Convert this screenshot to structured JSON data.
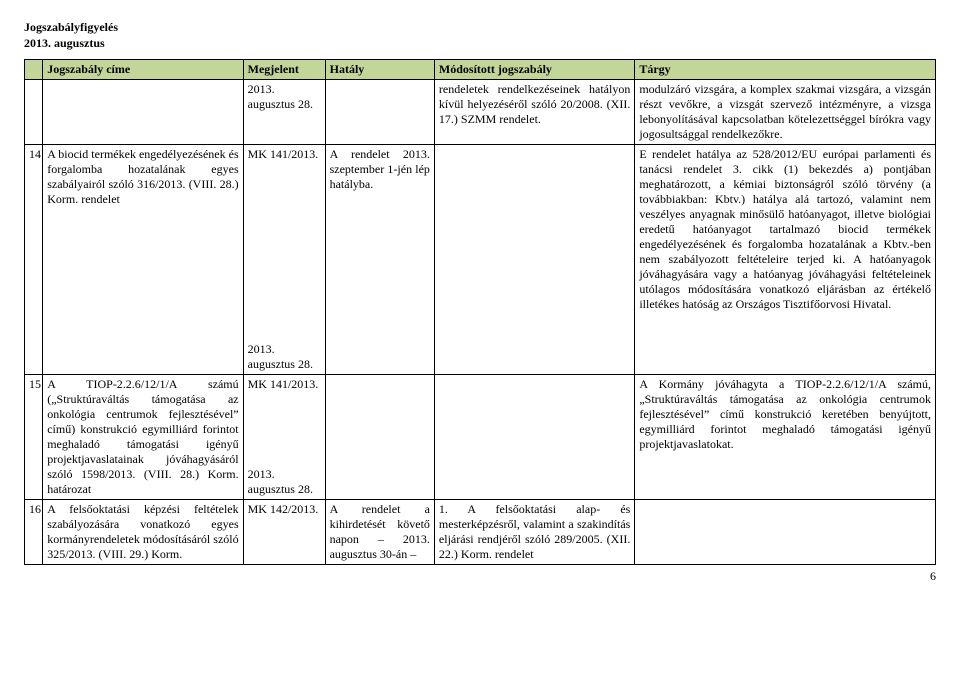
{
  "header": {
    "line1": "Jogszabályfigyelés",
    "line2": "2013. augusztus"
  },
  "columns": {
    "num": "",
    "title": "Jogszabály címe",
    "published": "Megjelent",
    "effective": "Hatály",
    "modified": "Módosított jogszabály",
    "subject": "Tárgy"
  },
  "rows": [
    {
      "num": "",
      "title": "",
      "published": "2013. augusztus 28.",
      "effective": "",
      "modified": "rendeletek rendelkezéseinek hatályon kívül helyezéséről szóló 20/2008. (XII. 17.) SZMM rendelet.",
      "subject": "modulzáró vizsgára, a komplex szakmai vizsgára, a vizsgán részt vevőkre, a vizsgát szervező intézményre, a vizsga lebonyolításával kapcsolatban kötelezettséggel bírókra vagy jogosultsággal rendelkezőkre."
    },
    {
      "num": "14",
      "title": "A biocid termékek engedélyezésének és forgalomba hozatalának egyes szabályairól szóló 316/2013. (VIII. 28.) Korm. rendelet",
      "published": "MK 141/2013.\n\n\n\n\n\n\n\n\n\n\n\n\n2013. augusztus 28.",
      "effective": "A rendelet 2013. szeptember 1-jén lép hatályba.",
      "modified": "",
      "subject": "E rendelet hatálya az 528/2012/EU európai parlamenti és tanácsi rendelet 3. cikk (1) bekezdés a) pontjában meghatározott, a kémiai biztonságról szóló törvény (a továbbiakban: Kbtv.) hatálya alá tartozó, valamint nem veszélyes anyagnak minősülő hatóanyagot, illetve biológiai eredetű hatóanyagot tartalmazó biocid termékek engedélyezésének és forgalomba hozatalának a Kbtv.-ben nem szabályozott feltételeire terjed ki. A hatóanyagok jóváhagyására vagy a hatóanyag jóváhagyási feltételeinek utólagos módosítására vonatkozó eljárásban az értékelő illetékes hatóság az Országos Tisztifőorvosi Hivatal."
    },
    {
      "num": "15",
      "title": "A TIOP-2.2.6/12/1/A számú („Struktúraváltás támogatása az onkológia centrumok fejlesztésével” című) konstrukció egymilliárd forintot meghaladó támogatási igényű projektjavaslatainak jóváhagyásáról szóló 1598/2013. (VIII. 28.) Korm. határozat",
      "published": "MK 141/2013.\n\n\n\n\n\n2013. augusztus 28.",
      "effective": "",
      "modified": "",
      "subject": "A Kormány jóváhagyta a TIOP-2.2.6/12/1/A számú, „Struktúraváltás támogatása az onkológia centrumok fejlesztésével” című konstrukció keretében benyújtott, egymilliárd forintot meghaladó támogatási igényű projektjavaslatokat."
    },
    {
      "num": "16",
      "title": "A felsőoktatási képzési feltételek szabályozására vonatkozó egyes kormányrendeletek módosításáról szóló 325/2013. (VIII. 29.) Korm.",
      "published": "MK 142/2013.",
      "effective": "A rendelet a kihirdetését követő napon – 2013. augusztus 30-án –",
      "modified": "1. A felsőoktatási alap- és mesterképzésről, valamint a szakindítás eljárási rendjéről szóló 289/2005. (XII. 22.) Korm. rendelet",
      "subject": ""
    }
  ],
  "page_number": "6"
}
